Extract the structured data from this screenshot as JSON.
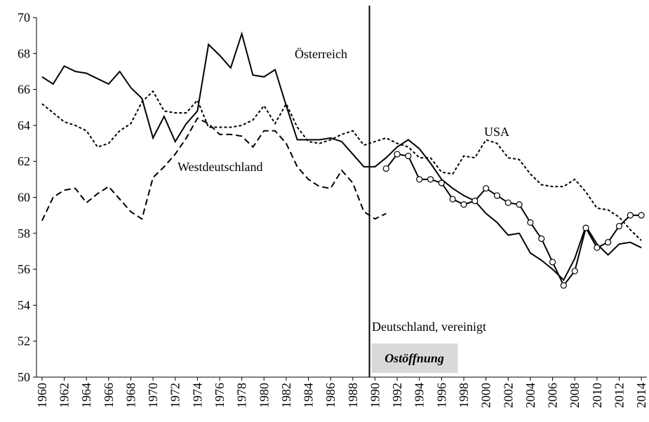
{
  "chart_data": {
    "type": "line",
    "x": [
      1960,
      1961,
      1962,
      1963,
      1964,
      1965,
      1966,
      1967,
      1968,
      1969,
      1970,
      1971,
      1972,
      1973,
      1974,
      1975,
      1976,
      1977,
      1978,
      1979,
      1980,
      1981,
      1982,
      1983,
      1984,
      1985,
      1986,
      1987,
      1988,
      1989,
      1990,
      1991,
      1992,
      1993,
      1994,
      1995,
      1996,
      1997,
      1998,
      1999,
      2000,
      2001,
      2002,
      2003,
      2004,
      2005,
      2006,
      2007,
      2008,
      2009,
      2010,
      2011,
      2012,
      2013,
      2014
    ],
    "series": [
      {
        "name": "Österreich",
        "color": "#000000",
        "dash": "solid",
        "marker": "none",
        "values": [
          66.7,
          66.3,
          67.3,
          67.0,
          66.9,
          66.6,
          66.3,
          67.0,
          66.1,
          65.5,
          63.3,
          64.5,
          63.1,
          64.1,
          64.8,
          68.5,
          67.9,
          67.2,
          69.1,
          66.8,
          66.7,
          67.1,
          65.1,
          63.2,
          63.2,
          63.2,
          63.3,
          63.1,
          62.4,
          61.7,
          61.7,
          62.2,
          62.8,
          63.2,
          62.7,
          61.9,
          61.0,
          60.5,
          60.1,
          59.8,
          59.1,
          58.6,
          57.9,
          58.0,
          56.9,
          56.5,
          56.0,
          55.4,
          56.6,
          58.4,
          57.4,
          56.8,
          57.4,
          57.5,
          57.2
        ]
      },
      {
        "name": "USA",
        "color": "#000000",
        "dash": "dotted",
        "marker": "none",
        "values": [
          65.2,
          64.7,
          64.2,
          64.0,
          63.7,
          62.8,
          63.0,
          63.7,
          64.1,
          65.3,
          65.9,
          64.8,
          64.7,
          64.7,
          65.4,
          63.9,
          63.9,
          63.9,
          64.0,
          64.3,
          65.1,
          64.1,
          65.2,
          63.9,
          63.1,
          63.0,
          63.2,
          63.5,
          63.7,
          62.9,
          63.1,
          63.3,
          63.0,
          62.8,
          62.2,
          62.2,
          61.4,
          61.3,
          62.3,
          62.2,
          63.2,
          63.0,
          62.2,
          62.1,
          61.3,
          60.7,
          60.6,
          60.6,
          61.0,
          60.3,
          59.4,
          59.3,
          58.9,
          58.2,
          57.6
        ]
      },
      {
        "name": "Westdeutschland",
        "color": "#000000",
        "dash": "dashed",
        "marker": "none",
        "values": [
          58.7,
          60.0,
          60.4,
          60.5,
          59.7,
          60.2,
          60.6,
          59.9,
          59.2,
          58.8,
          61.1,
          61.7,
          62.4,
          63.3,
          64.4,
          64.1,
          63.5,
          63.5,
          63.4,
          62.8,
          63.7,
          63.7,
          63.0,
          61.7,
          61.0,
          60.6,
          60.5,
          61.5,
          60.8,
          59.2,
          58.8,
          59.1,
          null,
          null,
          null,
          null,
          null,
          null,
          null,
          null,
          null,
          null,
          null,
          null,
          null,
          null,
          null,
          null,
          null,
          null,
          null,
          null,
          null,
          null,
          null
        ]
      },
      {
        "name": "Deutschland, vereinigt",
        "color": "#000000",
        "dash": "solid",
        "marker": "circle",
        "values": [
          null,
          null,
          null,
          null,
          null,
          null,
          null,
          null,
          null,
          null,
          null,
          null,
          null,
          null,
          null,
          null,
          null,
          null,
          null,
          null,
          null,
          null,
          null,
          null,
          null,
          null,
          null,
          null,
          null,
          null,
          null,
          61.6,
          62.4,
          62.3,
          61.0,
          61.0,
          60.8,
          59.9,
          59.6,
          59.8,
          60.5,
          60.1,
          59.7,
          59.6,
          58.6,
          57.7,
          56.4,
          55.1,
          55.9,
          58.3,
          57.2,
          57.5,
          58.4,
          59.0,
          59.0
        ]
      }
    ],
    "event": {
      "label": "Ostöffnung",
      "x": 1989.5
    },
    "xlim": [
      1959.5,
      2014.5
    ],
    "xticks": [
      1960,
      1962,
      1964,
      1966,
      1968,
      1970,
      1972,
      1974,
      1976,
      1978,
      1980,
      1982,
      1984,
      1986,
      1988,
      1990,
      1992,
      1994,
      1996,
      1998,
      2000,
      2002,
      2004,
      2006,
      2008,
      2010,
      2012,
      2014
    ],
    "ylim": [
      50,
      70
    ],
    "yticks": [
      50,
      52,
      54,
      56,
      58,
      60,
      62,
      64,
      66,
      68,
      70
    ],
    "grid": false
  }
}
